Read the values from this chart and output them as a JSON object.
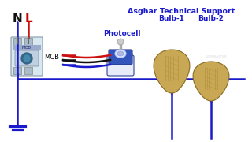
{
  "background_color": "#ffffff",
  "title": "Asghar Technical Support",
  "title_color": "#1a1acc",
  "title_fontsize": 6.8,
  "label_N": "N",
  "label_L": "L",
  "label_N_color": "#111111",
  "label_L_color": "#cc0000",
  "label_MCB": "MCB",
  "label_Photocell": "Photocell",
  "label_Bulb1": "Bulb-1",
  "label_Bulb2": "Bulb-2",
  "label_color_blue": "#1a1acc",
  "wire_blue": "#1a1acc",
  "wire_red": "#cc1111",
  "wire_black": "#111111",
  "bulb_color": "#c8a855",
  "bulb_edge": "#8a6c22",
  "mcb_face": "#d8e8f0",
  "mcb_edge": "#8899aa",
  "photocell_face": "#3355bb",
  "photocell_edge": "#223388"
}
